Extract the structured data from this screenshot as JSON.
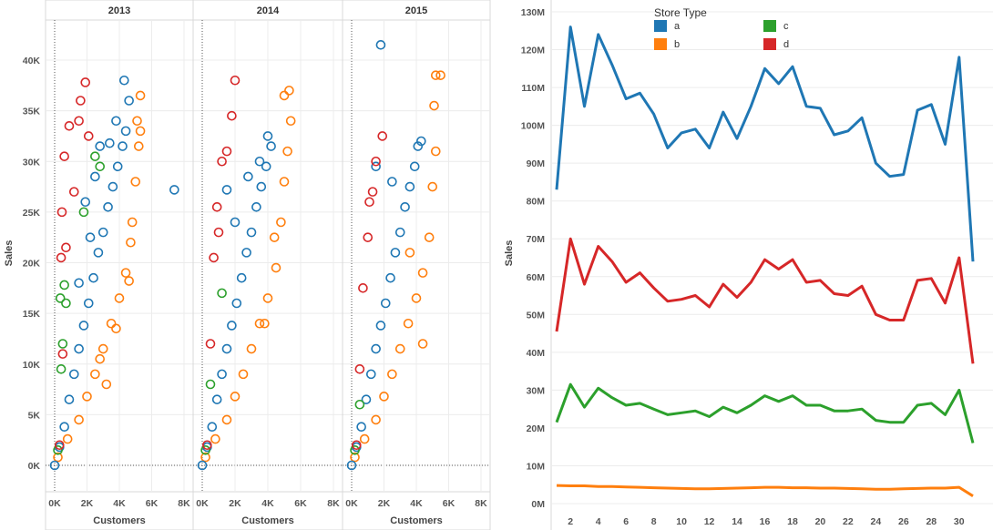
{
  "chart_data": [
    {
      "type": "scatter",
      "facet_label": "2013",
      "xlabel": "Customers",
      "ylabel": "Sales",
      "x_ticks": [
        "0K",
        "2K",
        "4K",
        "6K",
        "8K"
      ],
      "y_ticks": [
        "0K",
        "5K",
        "10K",
        "15K",
        "20K",
        "25K",
        "30K",
        "35K",
        "40K"
      ],
      "xlim": [
        0,
        8000
      ],
      "ylim": [
        0,
        43000
      ],
      "series": [
        {
          "name": "a",
          "points": [
            [
              0,
              0
            ],
            [
              300,
              1800
            ],
            [
              600,
              3800
            ],
            [
              900,
              6500
            ],
            [
              1200,
              9000
            ],
            [
              1500,
              11500
            ],
            [
              1800,
              13800
            ],
            [
              2100,
              16000
            ],
            [
              2400,
              18500
            ],
            [
              2700,
              21000
            ],
            [
              3000,
              23000
            ],
            [
              3300,
              25500
            ],
            [
              3600,
              27500
            ],
            [
              3900,
              29500
            ],
            [
              4200,
              31500
            ],
            [
              4400,
              33000
            ],
            [
              4300,
              38000
            ],
            [
              3800,
              34000
            ],
            [
              4600,
              36000
            ],
            [
              7400,
              27200
            ],
            [
              2200,
              22500
            ],
            [
              1500,
              18000
            ],
            [
              2800,
              31500
            ],
            [
              3400,
              31800
            ],
            [
              1900,
              26000
            ],
            [
              2500,
              28500
            ]
          ]
        },
        {
          "name": "b",
          "points": [
            [
              200,
              800
            ],
            [
              800,
              2600
            ],
            [
              1500,
              4500
            ],
            [
              2000,
              6800
            ],
            [
              2500,
              9000
            ],
            [
              3000,
              11500
            ],
            [
              3500,
              14000
            ],
            [
              4000,
              16500
            ],
            [
              4400,
              19000
            ],
            [
              4800,
              24000
            ],
            [
              5000,
              28000
            ],
            [
              5200,
              31500
            ],
            [
              5100,
              34000
            ],
            [
              5300,
              36500
            ],
            [
              4700,
              22000
            ],
            [
              3800,
              13500
            ],
            [
              4600,
              18200
            ],
            [
              2800,
              10500
            ],
            [
              3200,
              8000
            ],
            [
              5300,
              33000
            ]
          ]
        },
        {
          "name": "c",
          "points": [
            [
              200,
              1500
            ],
            [
              400,
              9500
            ],
            [
              350,
              16500
            ],
            [
              600,
              17800
            ],
            [
              700,
              16000
            ],
            [
              500,
              12000
            ],
            [
              2500,
              30500
            ],
            [
              2800,
              29500
            ],
            [
              1800,
              25000
            ]
          ]
        },
        {
          "name": "d",
          "points": [
            [
              300,
              2000
            ],
            [
              500,
              11000
            ],
            [
              400,
              20500
            ],
            [
              450,
              25000
            ],
            [
              600,
              30500
            ],
            [
              900,
              33500
            ],
            [
              1500,
              34000
            ],
            [
              1900,
              37800
            ],
            [
              2100,
              32500
            ],
            [
              1200,
              27000
            ],
            [
              700,
              21500
            ],
            [
              1600,
              36000
            ]
          ]
        }
      ]
    },
    {
      "type": "scatter",
      "facet_label": "2014",
      "xlabel": "Customers",
      "ylabel": "Sales",
      "x_ticks": [
        "0K",
        "2K",
        "4K",
        "6K",
        "8K"
      ],
      "xlim": [
        0,
        8000
      ],
      "ylim": [
        0,
        43000
      ],
      "series": [
        {
          "name": "a",
          "points": [
            [
              0,
              0
            ],
            [
              300,
              1800
            ],
            [
              600,
              3800
            ],
            [
              900,
              6500
            ],
            [
              1200,
              9000
            ],
            [
              1500,
              11500
            ],
            [
              1800,
              13800
            ],
            [
              2100,
              16000
            ],
            [
              2400,
              18500
            ],
            [
              2700,
              21000
            ],
            [
              3000,
              23000
            ],
            [
              3300,
              25500
            ],
            [
              3600,
              27500
            ],
            [
              3900,
              29500
            ],
            [
              4200,
              31500
            ],
            [
              4000,
              32500
            ],
            [
              3500,
              30000
            ],
            [
              1500,
              27200
            ],
            [
              2800,
              28500
            ],
            [
              2000,
              24000
            ]
          ]
        },
        {
          "name": "b",
          "points": [
            [
              200,
              800
            ],
            [
              800,
              2600
            ],
            [
              1500,
              4500
            ],
            [
              2000,
              6800
            ],
            [
              2500,
              9000
            ],
            [
              3000,
              11500
            ],
            [
              3500,
              14000
            ],
            [
              4000,
              16500
            ],
            [
              4500,
              19500
            ],
            [
              4800,
              24000
            ],
            [
              5000,
              28000
            ],
            [
              5200,
              31000
            ],
            [
              5400,
              34000
            ],
            [
              5300,
              37000
            ],
            [
              5000,
              36500
            ],
            [
              4400,
              22500
            ],
            [
              3800,
              14000
            ]
          ]
        },
        {
          "name": "c",
          "points": [
            [
              200,
              1500
            ],
            [
              500,
              8000
            ],
            [
              1200,
              17000
            ]
          ]
        },
        {
          "name": "d",
          "points": [
            [
              300,
              2000
            ],
            [
              500,
              12000
            ],
            [
              700,
              20500
            ],
            [
              900,
              25500
            ],
            [
              1500,
              31000
            ],
            [
              1800,
              34500
            ],
            [
              2000,
              38000
            ],
            [
              1200,
              30000
            ],
            [
              1000,
              23000
            ]
          ]
        }
      ]
    },
    {
      "type": "scatter",
      "facet_label": "2015",
      "xlabel": "Customers",
      "ylabel": "Sales",
      "x_ticks": [
        "0K",
        "2K",
        "4K",
        "6K",
        "8K"
      ],
      "xlim": [
        0,
        8000
      ],
      "ylim": [
        0,
        43000
      ],
      "series": [
        {
          "name": "a",
          "points": [
            [
              0,
              0
            ],
            [
              300,
              1800
            ],
            [
              600,
              3800
            ],
            [
              900,
              6500
            ],
            [
              1200,
              9000
            ],
            [
              1500,
              11500
            ],
            [
              1800,
              13800
            ],
            [
              2100,
              16000
            ],
            [
              2400,
              18500
            ],
            [
              2700,
              21000
            ],
            [
              3000,
              23000
            ],
            [
              3300,
              25500
            ],
            [
              3600,
              27500
            ],
            [
              3900,
              29500
            ],
            [
              4100,
              31500
            ],
            [
              4300,
              32000
            ],
            [
              1800,
              41500
            ],
            [
              1500,
              29500
            ],
            [
              2500,
              28000
            ]
          ]
        },
        {
          "name": "b",
          "points": [
            [
              200,
              800
            ],
            [
              800,
              2600
            ],
            [
              1500,
              4500
            ],
            [
              2000,
              6800
            ],
            [
              2500,
              9000
            ],
            [
              3000,
              11500
            ],
            [
              3500,
              14000
            ],
            [
              4000,
              16500
            ],
            [
              4400,
              19000
            ],
            [
              4800,
              22500
            ],
            [
              5000,
              27500
            ],
            [
              5200,
              31000
            ],
            [
              5100,
              35500
            ],
            [
              5200,
              38500
            ],
            [
              5500,
              38500
            ],
            [
              4400,
              12000
            ],
            [
              3600,
              21000
            ]
          ]
        },
        {
          "name": "c",
          "points": [
            [
              200,
              1500
            ],
            [
              500,
              6000
            ]
          ]
        },
        {
          "name": "d",
          "points": [
            [
              300,
              2000
            ],
            [
              500,
              9500
            ],
            [
              700,
              17500
            ],
            [
              1000,
              22500
            ],
            [
              1300,
              27000
            ],
            [
              1500,
              30000
            ],
            [
              1900,
              32500
            ],
            [
              1100,
              26000
            ]
          ]
        }
      ]
    },
    {
      "type": "line",
      "xlabel": "",
      "ylabel": "Sales",
      "legend_title": "Store Type",
      "legend_position": "top",
      "x": [
        1,
        2,
        3,
        4,
        5,
        6,
        7,
        8,
        9,
        10,
        11,
        12,
        13,
        14,
        15,
        16,
        17,
        18,
        19,
        20,
        21,
        22,
        23,
        24,
        25,
        26,
        27,
        28,
        29,
        30,
        31
      ],
      "x_ticks": [
        "2",
        "4",
        "6",
        "8",
        "10",
        "12",
        "14",
        "16",
        "18",
        "20",
        "22",
        "24",
        "26",
        "28",
        "30"
      ],
      "y_ticks": [
        "0M",
        "10M",
        "20M",
        "30M",
        "40M",
        "50M",
        "60M",
        "70M",
        "80M",
        "90M",
        "100M",
        "110M",
        "120M",
        "130M"
      ],
      "ylim": [
        0,
        130000000
      ],
      "series": [
        {
          "name": "a",
          "color": "#1f77b4",
          "values": [
            83,
            126,
            105,
            124,
            116,
            107,
            108.5,
            103,
            94,
            98,
            99,
            94,
            103.5,
            96.5,
            105,
            115,
            111,
            115.5,
            105,
            104.5,
            97.5,
            98.5,
            102,
            90,
            86.5,
            87,
            104,
            105.5,
            95,
            118,
            64
          ]
        },
        {
          "name": "b",
          "color": "#ff7f0e",
          "values": [
            4.8,
            4.7,
            4.7,
            4.5,
            4.5,
            4.4,
            4.3,
            4.2,
            4.1,
            4,
            3.9,
            3.9,
            4,
            4.1,
            4.2,
            4.3,
            4.3,
            4.2,
            4.2,
            4.1,
            4.1,
            4,
            3.9,
            3.8,
            3.8,
            3.9,
            4,
            4.1,
            4.1,
            4.3,
            2
          ]
        },
        {
          "name": "c",
          "color": "#2ca02c",
          "values": [
            21.5,
            31.5,
            25.5,
            30.5,
            28,
            26,
            26.5,
            25,
            23.5,
            24,
            24.5,
            23,
            25.5,
            24,
            26,
            28.5,
            27,
            28.5,
            26,
            26,
            24.5,
            24.5,
            25,
            22,
            21.5,
            21.5,
            26,
            26.5,
            23.5,
            30,
            16
          ]
        },
        {
          "name": "d",
          "color": "#d62728",
          "values": [
            45.5,
            70,
            58,
            68,
            64,
            58.5,
            61,
            57,
            53.5,
            54,
            55,
            52,
            58,
            54.5,
            58.5,
            64.5,
            62,
            64.5,
            58.5,
            59,
            55.5,
            55,
            57.5,
            50,
            48.5,
            48.5,
            59,
            59.5,
            53,
            65,
            37
          ]
        }
      ],
      "value_unit": "M"
    }
  ],
  "colors": {
    "a": "#1f77b4",
    "b": "#ff7f0e",
    "c": "#2ca02c",
    "d": "#d62728"
  },
  "legend": {
    "title": "Store Type",
    "items": [
      {
        "label": "a",
        "color": "#1f77b4"
      },
      {
        "label": "c",
        "color": "#2ca02c"
      },
      {
        "label": "b",
        "color": "#ff7f0e"
      },
      {
        "label": "d",
        "color": "#d62728"
      }
    ]
  }
}
